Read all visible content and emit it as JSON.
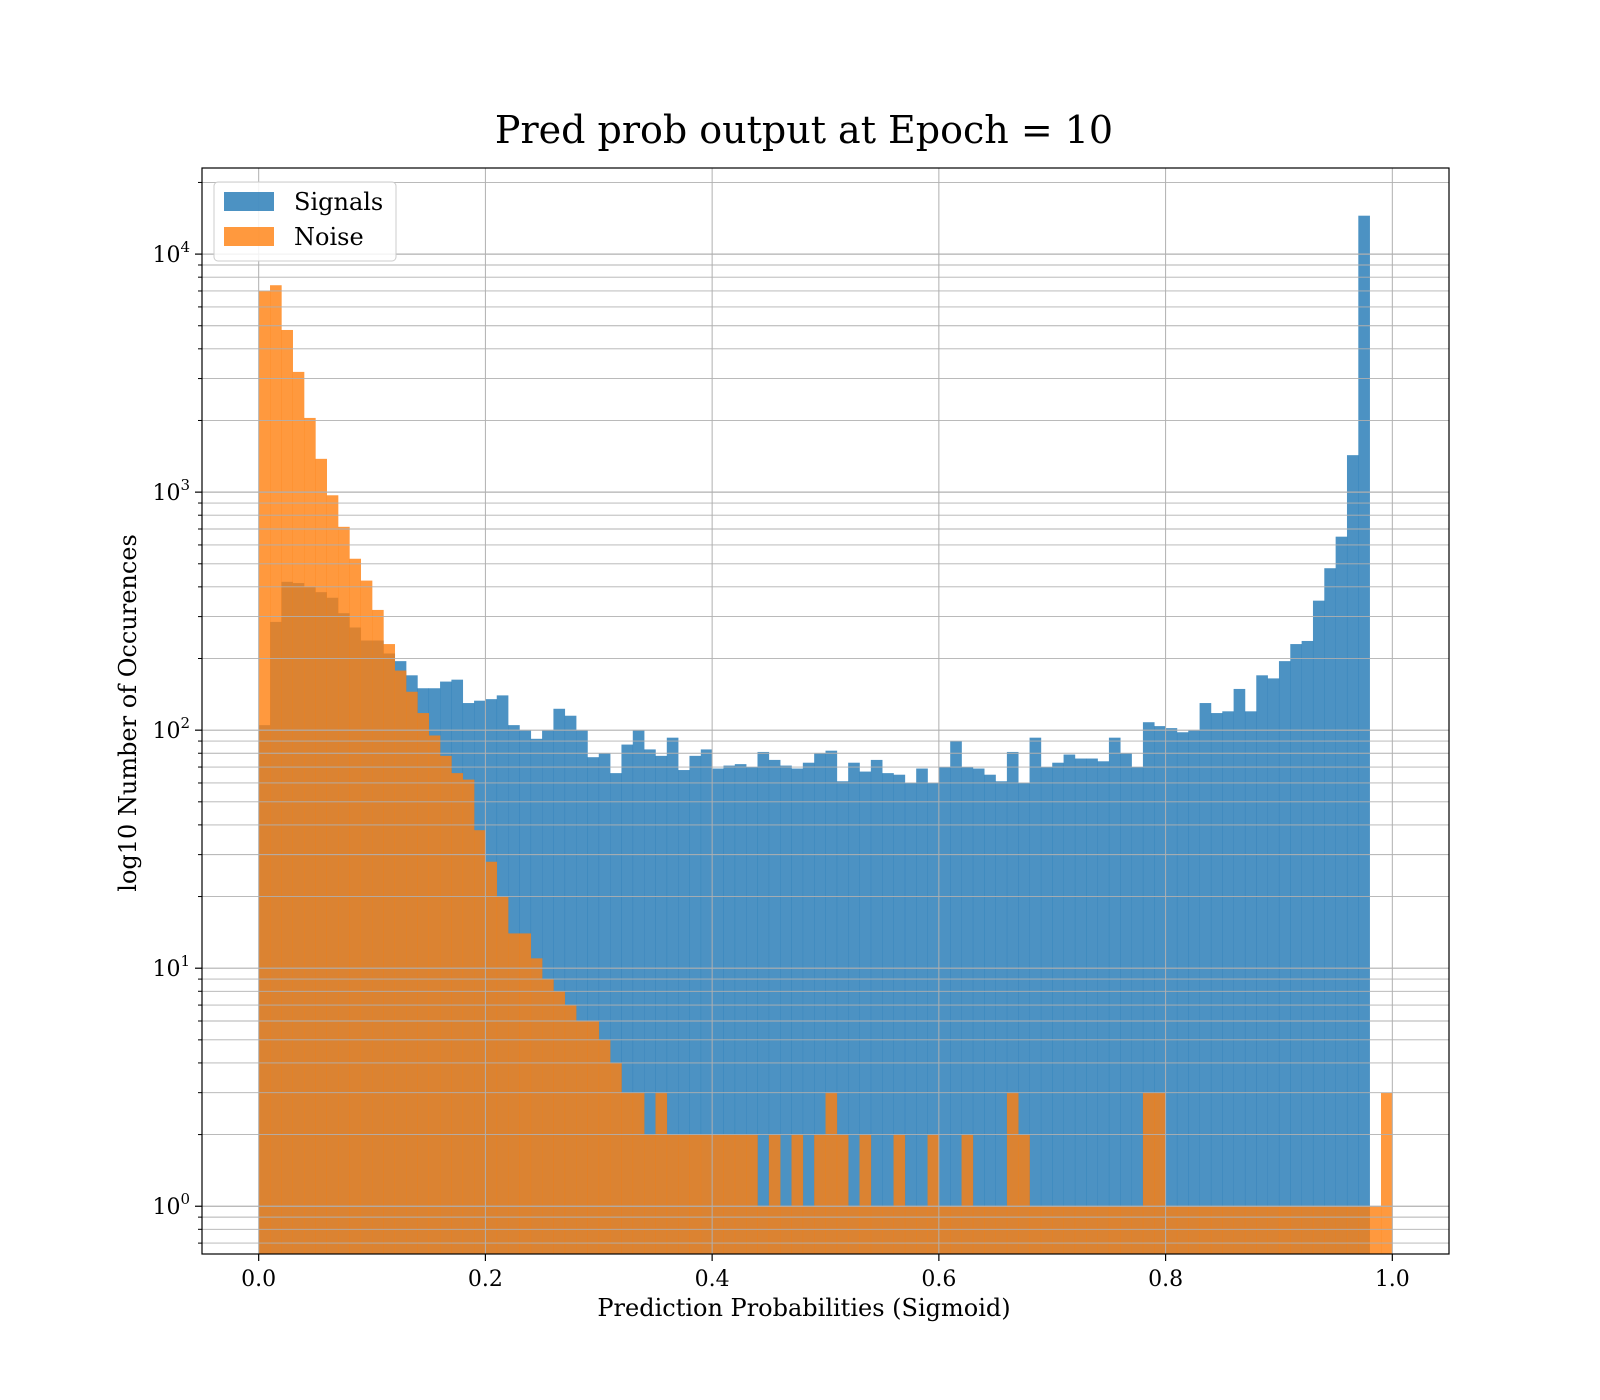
{
  "chart_data": {
    "type": "histogram",
    "title": "Pred prob output at Epoch = 10",
    "xlabel": "Prediction Probabilities (Sigmoid)",
    "ylabel": "log10 Number of Occurences",
    "xlim": [
      -0.05,
      1.05
    ],
    "ylim": [
      0.63,
      23000
    ],
    "yscale": "log",
    "grid": true,
    "legend_position": "upper-left",
    "bin_width": 0.01,
    "x_ticks": [
      0.0,
      0.2,
      0.4,
      0.6,
      0.8,
      1.0
    ],
    "x_tick_labels": [
      "0.0",
      "0.2",
      "0.4",
      "0.6",
      "0.8",
      "1.0"
    ],
    "y_ticks": [
      1,
      10,
      100,
      1000,
      10000
    ],
    "y_tick_labels": [
      {
        "base": "10",
        "exp": "0"
      },
      {
        "base": "10",
        "exp": "1"
      },
      {
        "base": "10",
        "exp": "2"
      },
      {
        "base": "10",
        "exp": "3"
      },
      {
        "base": "10",
        "exp": "4"
      }
    ],
    "series": [
      {
        "name": "Signals",
        "color": "#1f77b4",
        "values": [
          105,
          285,
          420,
          415,
          400,
          380,
          360,
          310,
          270,
          238,
          238,
          210,
          195,
          170,
          150,
          150,
          160,
          163,
          130,
          133,
          135,
          140,
          105,
          100,
          92,
          100,
          123,
          115,
          100,
          77,
          80,
          66,
          87,
          100,
          83,
          78,
          93,
          68,
          78,
          83,
          69,
          71,
          72,
          70,
          81,
          75,
          71,
          69,
          73,
          80,
          82,
          61,
          73,
          67,
          75,
          66,
          65,
          60,
          69,
          60,
          70,
          90,
          70,
          69,
          65,
          61,
          81,
          60,
          93,
          70,
          73,
          79,
          76,
          76,
          74,
          93,
          80,
          70,
          108,
          104,
          102,
          98,
          100,
          130,
          118,
          120,
          149,
          120,
          170,
          165,
          195,
          230,
          237,
          350,
          479,
          650,
          1430,
          14500,
          0,
          0
        ],
        "opacity": 0.8
      },
      {
        "name": "Noise",
        "color": "#ff7f0e",
        "values": [
          7000,
          7400,
          4800,
          3200,
          2050,
          1380,
          970,
          715,
          525,
          425,
          320,
          230,
          178,
          145,
          118,
          95,
          78,
          66,
          62,
          38,
          28,
          20,
          14,
          14,
          11,
          9,
          8,
          7,
          6,
          6,
          5,
          4,
          3,
          3,
          2,
          3,
          2,
          2,
          2,
          2,
          2,
          2,
          2,
          2,
          1,
          2,
          1,
          2,
          1,
          2,
          3,
          2,
          1,
          2,
          1,
          1,
          2,
          1,
          1,
          2,
          1,
          1,
          2,
          1,
          1,
          1,
          3,
          2,
          1,
          1,
          1,
          1,
          1,
          1,
          1,
          1,
          1,
          1,
          3,
          3,
          1,
          1,
          1,
          1,
          1,
          1,
          1,
          1,
          1,
          1,
          1,
          1,
          1,
          1,
          1,
          1,
          1,
          1,
          1,
          3
        ],
        "opacity": 0.8
      }
    ]
  }
}
